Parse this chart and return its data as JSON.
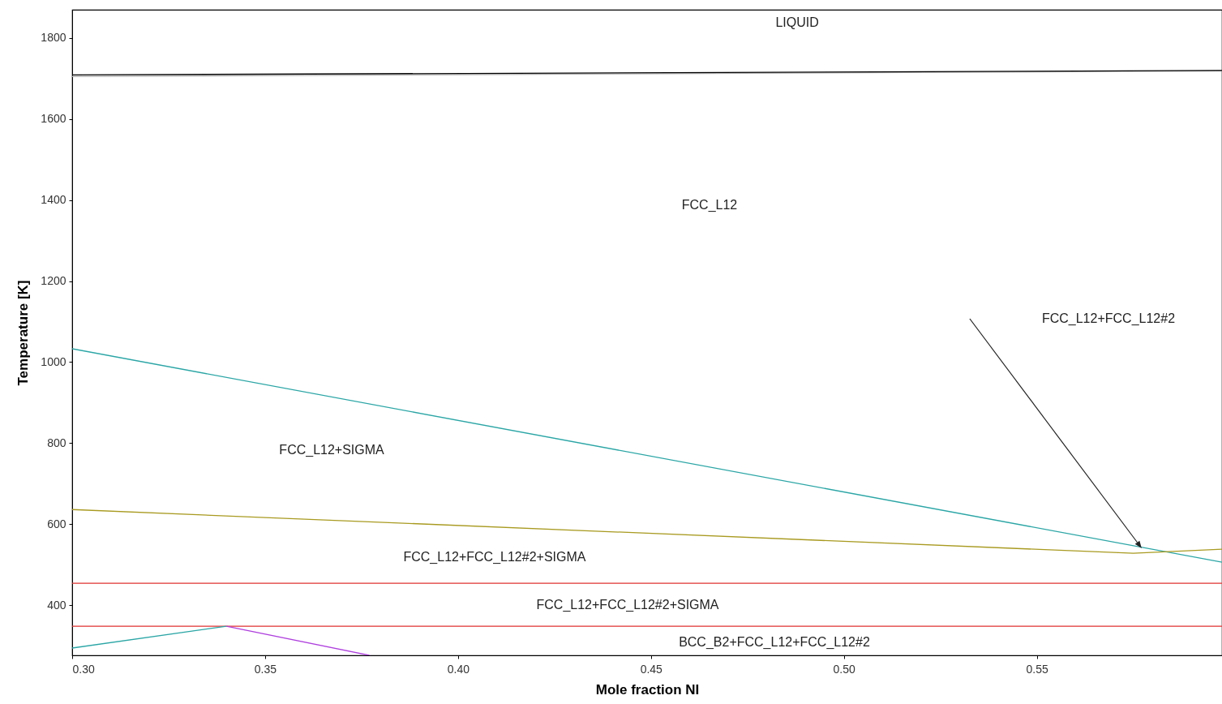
{
  "chart_data": {
    "type": "line",
    "xlabel": "Mole fraction NI",
    "ylabel": "Temperature [K]",
    "xlim": [
      0.3,
      0.598
    ],
    "xticks": [
      {
        "value": 0.3,
        "label": "0.30"
      },
      0.35,
      {
        "value": 0.4,
        "label": "0.40"
      },
      0.45,
      {
        "value": 0.5,
        "label": "0.50"
      },
      0.55
    ],
    "ylim": [
      276,
      1870
    ],
    "yticks": [
      400,
      600,
      800,
      1000,
      1200,
      1400,
      1600,
      1800
    ],
    "grid": false,
    "marker": "none",
    "line_style": "solid",
    "series": [
      {
        "color": "#b0b0b0",
        "x": [
          0.3,
          0.598
        ],
        "values": [
          1705,
          1719
        ]
      },
      {
        "color": "#000000",
        "x": [
          0.3,
          0.598
        ],
        "values": [
          1709,
          1720
        ]
      },
      {
        "color": "#2aa6a6",
        "x": [
          0.3,
          0.598
        ],
        "values": [
          1033,
          506
        ]
      },
      {
        "color": "#a89a20",
        "x": [
          0.3,
          0.575,
          0.598
        ],
        "values": [
          636,
          528,
          538
        ]
      },
      {
        "color": "#e03030",
        "x": [
          0.3,
          0.598
        ],
        "values": [
          454,
          454
        ]
      },
      {
        "color": "#e03030",
        "x": [
          0.3,
          0.598
        ],
        "values": [
          348,
          348
        ]
      },
      {
        "color": "#2aa6a6",
        "x": [
          0.3,
          0.34
        ],
        "values": [
          294,
          348
        ]
      },
      {
        "color": "#b040e0",
        "x": [
          0.34,
          0.377
        ],
        "values": [
          348,
          276
        ]
      }
    ],
    "annotations": [
      "LIQUID",
      "FCC_L12",
      "FCC_L12+SIGMA",
      "FCC_L12+FCC_L12#2+SIGMA",
      "FCC_L12+FCC_L12#2+SIGMA",
      "BCC_B2+FCC_L12+FCC_L12#2",
      "FCC_L12+FCC_L12#2"
    ]
  }
}
